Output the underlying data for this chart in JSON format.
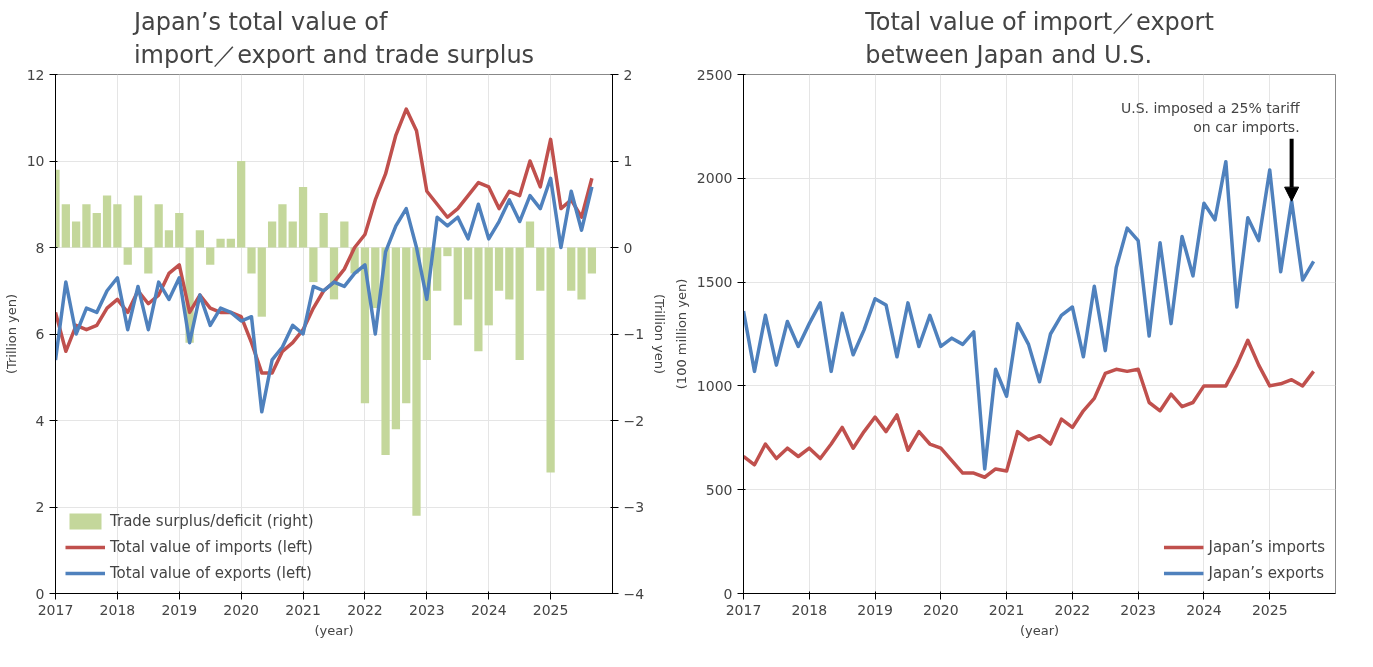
{
  "chart_data": [
    {
      "type": "line",
      "title": "Japan’s total value of import／export and trade surplus",
      "ylabel": "(Trillion yen)",
      "y2label": "(Trillion yen)",
      "xlabel": "(year)",
      "x": [
        2017.0,
        2017.167,
        2017.333,
        2017.5,
        2017.667,
        2017.833,
        2018.0,
        2018.167,
        2018.333,
        2018.5,
        2018.667,
        2018.833,
        2019.0,
        2019.167,
        2019.333,
        2019.5,
        2019.667,
        2019.833,
        2020.0,
        2020.167,
        2020.333,
        2020.5,
        2020.667,
        2020.833,
        2021.0,
        2021.167,
        2021.333,
        2021.5,
        2021.667,
        2021.833,
        2022.0,
        2022.167,
        2022.333,
        2022.5,
        2022.667,
        2022.833,
        2023.0,
        2023.167,
        2023.333,
        2023.5,
        2023.667,
        2023.833,
        2024.0,
        2024.167,
        2024.333,
        2024.5,
        2024.667,
        2024.833,
        2025.0,
        2025.167,
        2025.333,
        2025.5,
        2025.667
      ],
      "xlim": [
        2017,
        2026
      ],
      "xticks": [
        2017,
        2018,
        2019,
        2020,
        2021,
        2022,
        2023,
        2024,
        2025
      ],
      "ylim": [
        0,
        12
      ],
      "yticks": [
        0,
        2,
        4,
        6,
        8,
        10,
        12
      ],
      "y2lim": [
        -4,
        2
      ],
      "y2ticks": [
        -4,
        -3,
        -2,
        -1,
        0,
        1,
        2
      ],
      "grid": true,
      "legend": "bottom left",
      "series": [
        {
          "name": "Trade surplus/deficit (right)",
          "type": "bar",
          "axis": "y2",
          "color": "#c4d79b",
          "values": [
            0.9,
            0.5,
            0.3,
            0.5,
            0.4,
            0.6,
            0.5,
            -0.2,
            0.6,
            -0.3,
            0.5,
            0.2,
            0.4,
            -1.1,
            0.2,
            -0.2,
            0.1,
            0.1,
            1.0,
            -0.3,
            -0.8,
            0.3,
            0.5,
            0.3,
            0.7,
            -0.4,
            0.4,
            -0.6,
            0.3,
            -0.3,
            -1.8,
            -0.7,
            -2.4,
            -2.1,
            -1.8,
            -3.1,
            -1.3,
            -0.5,
            -0.1,
            -0.9,
            -0.6,
            -1.2,
            -0.9,
            -0.5,
            -0.6,
            -1.3,
            0.3,
            -0.5,
            -2.6,
            null,
            -0.5,
            -0.6,
            -0.3
          ]
        },
        {
          "name": "Total value of imports (left)",
          "color": "#c0504d",
          "values": [
            6.5,
            5.6,
            6.2,
            6.1,
            6.2,
            6.6,
            6.8,
            6.5,
            7.0,
            6.7,
            6.9,
            7.4,
            7.6,
            6.5,
            6.9,
            6.6,
            6.5,
            6.5,
            6.4,
            5.8,
            5.1,
            5.1,
            5.6,
            5.8,
            6.1,
            6.6,
            7.0,
            7.2,
            7.5,
            8.0,
            8.3,
            9.1,
            9.7,
            10.6,
            11.2,
            10.7,
            9.3,
            9.0,
            8.7,
            8.9,
            9.2,
            9.5,
            9.4,
            8.9,
            9.3,
            9.2,
            10.0,
            9.4,
            10.5,
            8.9,
            9.1,
            8.7,
            9.6
          ]
        },
        {
          "name": "Total value of exports (left)",
          "color": "#4f81bd",
          "values": [
            5.4,
            7.2,
            6.0,
            6.6,
            6.5,
            7.0,
            7.3,
            6.1,
            7.1,
            6.1,
            7.2,
            6.8,
            7.3,
            5.8,
            6.9,
            6.2,
            6.6,
            6.5,
            6.3,
            6.4,
            4.2,
            5.4,
            5.7,
            6.2,
            6.0,
            7.1,
            7.0,
            7.2,
            7.1,
            7.4,
            7.6,
            6.0,
            7.9,
            8.5,
            8.9,
            8.0,
            6.8,
            8.7,
            8.5,
            8.7,
            8.2,
            9.0,
            8.2,
            8.6,
            9.1,
            8.6,
            9.2,
            8.9,
            9.6,
            8.0,
            9.3,
            8.4,
            9.4
          ]
        }
      ]
    },
    {
      "type": "line",
      "title": "Total value of import／export between Japan and U.S.",
      "ylabel": "(100 million yen)",
      "xlabel": "(year)",
      "x": [
        2017.0,
        2017.167,
        2017.333,
        2017.5,
        2017.667,
        2017.833,
        2018.0,
        2018.167,
        2018.333,
        2018.5,
        2018.667,
        2018.833,
        2019.0,
        2019.167,
        2019.333,
        2019.5,
        2019.667,
        2019.833,
        2020.0,
        2020.167,
        2020.333,
        2020.5,
        2020.667,
        2020.833,
        2021.0,
        2021.167,
        2021.333,
        2021.5,
        2021.667,
        2021.833,
        2022.0,
        2022.167,
        2022.333,
        2022.5,
        2022.667,
        2022.833,
        2023.0,
        2023.167,
        2023.333,
        2023.5,
        2023.667,
        2023.833,
        2024.0,
        2024.167,
        2024.333,
        2024.5,
        2024.667,
        2024.833,
        2025.0,
        2025.167,
        2025.333,
        2025.5,
        2025.667
      ],
      "xlim": [
        2017,
        2026
      ],
      "xticks": [
        2017,
        2018,
        2019,
        2020,
        2021,
        2022,
        2023,
        2024,
        2025
      ],
      "ylim": [
        0,
        2500
      ],
      "yticks": [
        0,
        500,
        1000,
        1500,
        2000,
        2500
      ],
      "grid": true,
      "legend": "bottom right",
      "annotations": [
        {
          "text": "U.S. imposed a 25% tariff on car imports.",
          "x": 2025.333,
          "y": 1890
        }
      ],
      "series": [
        {
          "name": "Japan’s imports",
          "color": "#c0504d",
          "values": [
            660,
            620,
            720,
            650,
            700,
            660,
            700,
            650,
            720,
            800,
            700,
            780,
            850,
            780,
            860,
            690,
            780,
            720,
            700,
            640,
            580,
            580,
            560,
            600,
            590,
            780,
            740,
            760,
            720,
            840,
            800,
            880,
            940,
            1060,
            1080,
            1070,
            1080,
            920,
            880,
            960,
            900,
            920,
            1000,
            1000,
            1000,
            1100,
            1220,
            1100,
            1000,
            1010,
            1030,
            1000,
            1070
          ]
        },
        {
          "name": "Japan’s exports",
          "color": "#4f81bd",
          "values": [
            1360,
            1070,
            1340,
            1100,
            1310,
            1190,
            1300,
            1400,
            1070,
            1350,
            1150,
            1270,
            1420,
            1390,
            1140,
            1400,
            1190,
            1340,
            1190,
            1230,
            1200,
            1260,
            600,
            1080,
            950,
            1300,
            1200,
            1020,
            1250,
            1340,
            1380,
            1140,
            1480,
            1170,
            1570,
            1760,
            1700,
            1240,
            1690,
            1300,
            1720,
            1530,
            1880,
            1800,
            2080,
            1380,
            1810,
            1700,
            2040,
            1550,
            1890,
            1510,
            1600
          ]
        }
      ]
    }
  ]
}
